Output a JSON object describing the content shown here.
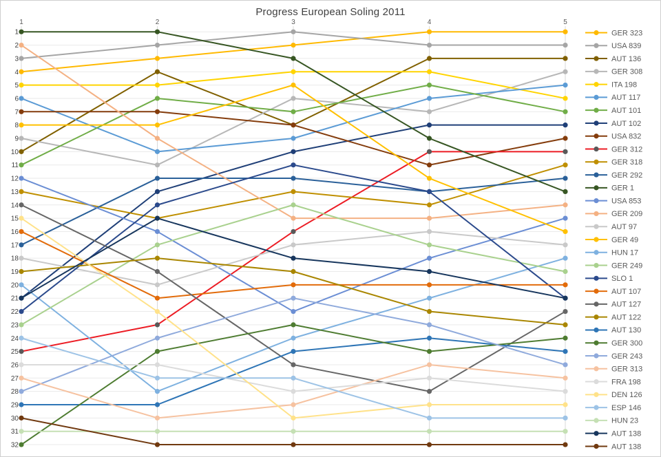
{
  "title": "Progress European Soling 2011",
  "chart_data": {
    "type": "line",
    "subtype": "bump-rank-progress",
    "title": "Progress European Soling 2011",
    "xlabel": "",
    "ylabel": "",
    "x_tick_position": "top",
    "x_ticks": [
      "1",
      "2",
      "3",
      "4",
      "5"
    ],
    "y_axis": {
      "min": 1,
      "max": 32,
      "step": 1,
      "inverted": true,
      "tick_side": "left"
    },
    "grid": {
      "horizontal": true,
      "vertical": true
    },
    "legend_position": "right",
    "axis_text_color": "#595959",
    "y_label_color": "#404040",
    "gridline_color_h": "#eaeaea",
    "gridline_color_v": "#d9d9d9",
    "series": [
      {
        "name": "GER 323",
        "color": "#FFB900",
        "ranks": [
          4,
          3,
          2,
          1,
          1
        ]
      },
      {
        "name": "USA 839",
        "color": "#A5A5A5",
        "ranks": [
          3,
          2,
          1,
          2,
          2
        ]
      },
      {
        "name": "AUT 136",
        "color": "#806000",
        "ranks": [
          10,
          4,
          8,
          3,
          3
        ]
      },
      {
        "name": "GER 308",
        "color": "#B7B7B7",
        "ranks": [
          9,
          11,
          6,
          7,
          4
        ]
      },
      {
        "name": "ITA 198",
        "color": "#FFD400",
        "ranks": [
          5,
          5,
          4,
          4,
          6
        ]
      },
      {
        "name": "AUT 117",
        "color": "#5B9BD5",
        "ranks": [
          6,
          10,
          9,
          6,
          5
        ]
      },
      {
        "name": "AUT 101",
        "color": "#70AD47",
        "ranks": [
          11,
          6,
          7,
          5,
          7
        ]
      },
      {
        "name": "AUT 102",
        "color": "#1F3F77",
        "ranks": [
          21,
          13,
          10,
          8,
          8
        ]
      },
      {
        "name": "USA 832",
        "color": "#843C0C",
        "ranks": [
          7,
          7,
          8,
          11,
          9
        ]
      },
      {
        "name": "GER 312",
        "color": "#EC1C24",
        "marker": "#595959",
        "ranks": [
          25,
          23,
          16,
          10,
          10
        ]
      },
      {
        "name": "GER 318",
        "color": "#BF8F00",
        "ranks": [
          13,
          15,
          13,
          14,
          11
        ]
      },
      {
        "name": "GER 292",
        "color": "#2A6099",
        "ranks": [
          17,
          12,
          12,
          13,
          12
        ]
      },
      {
        "name": "GER 1",
        "color": "#375623",
        "ranks": [
          1,
          1,
          3,
          9,
          13
        ]
      },
      {
        "name": "USA 853",
        "color": "#6B8ED4",
        "ranks": [
          12,
          16,
          22,
          18,
          15
        ]
      },
      {
        "name": "GER 209",
        "color": "#F4B183",
        "ranks": [
          2,
          9,
          15,
          15,
          14
        ]
      },
      {
        "name": "AUT 97",
        "color": "#C9C9C9",
        "ranks": [
          18,
          20,
          17,
          16,
          17
        ]
      },
      {
        "name": "GER 49",
        "color": "#FFC000",
        "ranks": [
          8,
          8,
          5,
          12,
          16
        ]
      },
      {
        "name": "HUN 17",
        "color": "#7EB1E0",
        "ranks": [
          20,
          28,
          24,
          21,
          18
        ]
      },
      {
        "name": "GER 249",
        "color": "#A9D18E",
        "ranks": [
          23,
          17,
          14,
          17,
          19
        ]
      },
      {
        "name": "SLO 1",
        "color": "#2B4A8C",
        "ranks": [
          22,
          14,
          11,
          13,
          21
        ]
      },
      {
        "name": "AUT 107",
        "color": "#E26B0A",
        "ranks": [
          16,
          21,
          20,
          20,
          20
        ]
      },
      {
        "name": "AUT 127",
        "color": "#666666",
        "ranks": [
          14,
          19,
          26,
          28,
          22
        ]
      },
      {
        "name": "AUT 122",
        "color": "#A98600",
        "ranks": [
          19,
          18,
          19,
          22,
          23
        ]
      },
      {
        "name": "AUT 130",
        "color": "#2E75B6",
        "ranks": [
          29,
          29,
          25,
          24,
          25
        ]
      },
      {
        "name": "GER 300",
        "color": "#4E7C31",
        "ranks": [
          32,
          25,
          23,
          25,
          24
        ]
      },
      {
        "name": "GER 243",
        "color": "#8FAADC",
        "ranks": [
          28,
          24,
          21,
          23,
          26
        ]
      },
      {
        "name": "GER 313",
        "color": "#F6C2A0",
        "ranks": [
          27,
          30,
          29,
          26,
          27
        ]
      },
      {
        "name": "FRA 198",
        "color": "#DBDBDB",
        "ranks": [
          26,
          26,
          28,
          27,
          28
        ]
      },
      {
        "name": "DEN 126",
        "color": "#FFE28A",
        "ranks": [
          15,
          22,
          30,
          29,
          29
        ]
      },
      {
        "name": "ESP 146",
        "color": "#9DC3E6",
        "ranks": [
          24,
          27,
          27,
          30,
          30
        ]
      },
      {
        "name": "HUN 23",
        "color": "#C5E0B4",
        "ranks": [
          31,
          31,
          31,
          31,
          31
        ]
      },
      {
        "name": "AUT 138",
        "color": "#17365D",
        "ranks": [
          21,
          15,
          18,
          19,
          21
        ]
      },
      {
        "name": "AUT 138",
        "color": "#70390F",
        "ranks": [
          30,
          32,
          32,
          32,
          32
        ]
      }
    ]
  }
}
